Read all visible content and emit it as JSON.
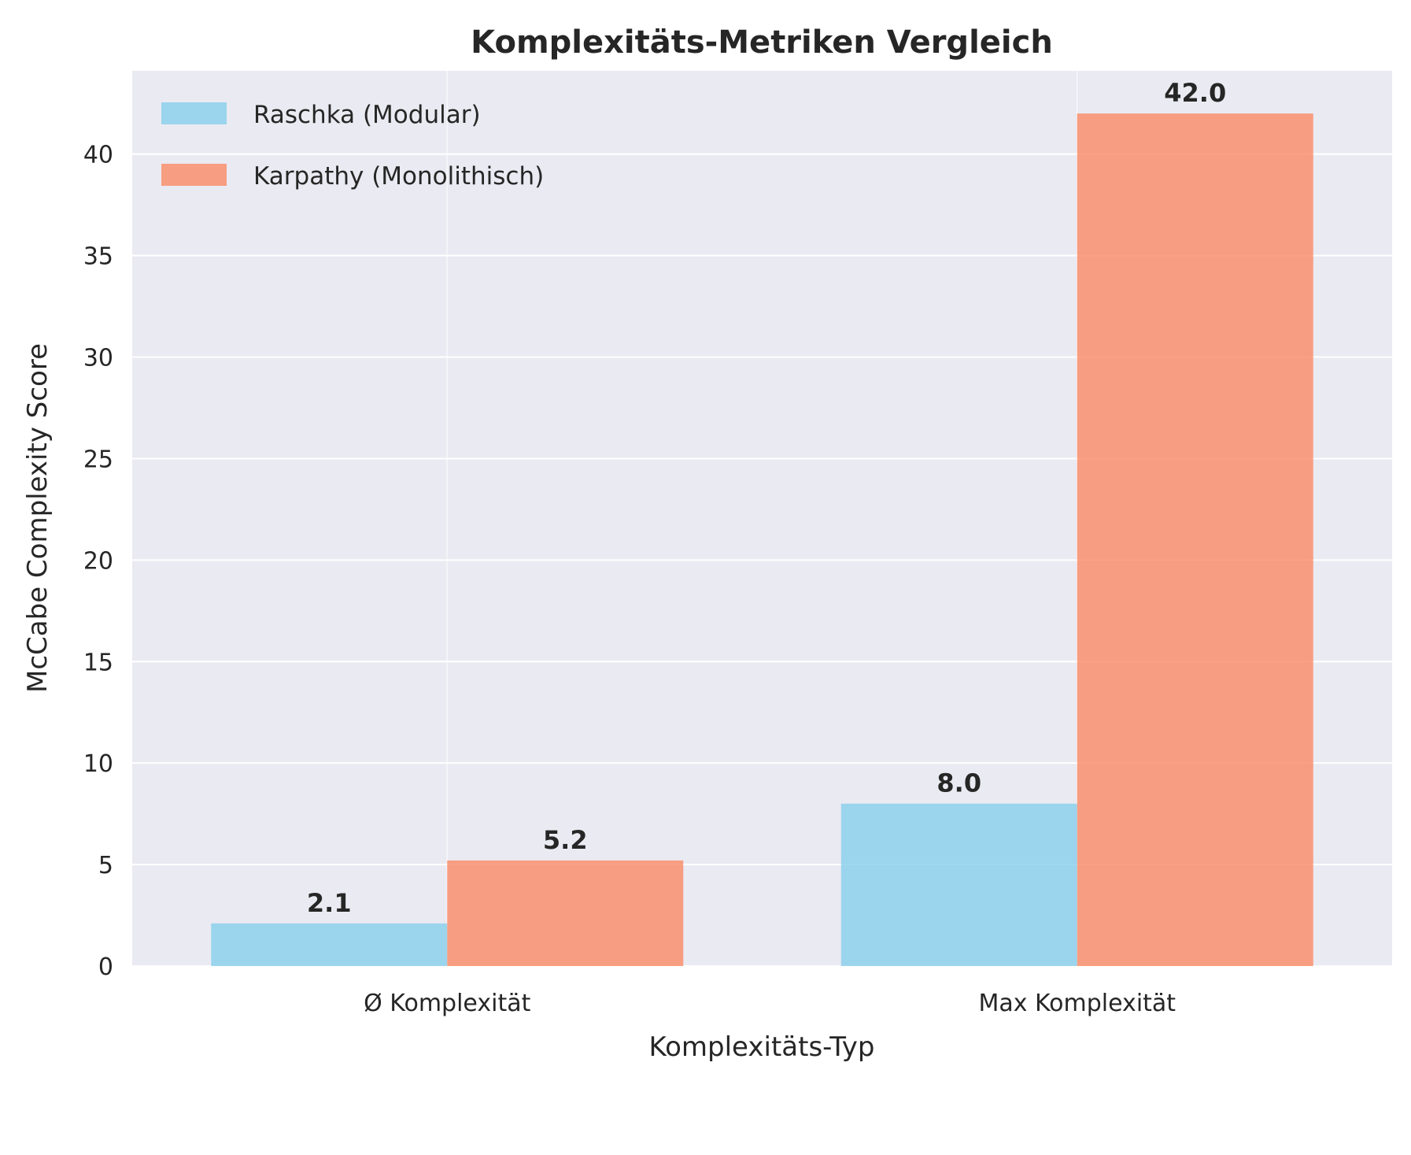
{
  "chart_data": {
    "type": "bar",
    "title": "Komplexitäts-Metriken Vergleich",
    "xlabel": "Komplexitäts-Typ",
    "ylabel": "McCabe Complexity Score",
    "categories": [
      "Ø Komplexität",
      "Max Komplexität"
    ],
    "series": [
      {
        "name": "Raschka (Modular)",
        "values": [
          2.1,
          8.0
        ],
        "color": "#87CEEB",
        "value_labels": [
          "2.1",
          "8.0"
        ]
      },
      {
        "name": "Karpathy (Monolithisch)",
        "values": [
          5.2,
          42.0
        ],
        "color": "#FA8A64",
        "value_labels": [
          "5.2",
          "42.0"
        ]
      }
    ],
    "ylim": [
      0,
      44.1
    ],
    "yticks": [
      0,
      5,
      10,
      15,
      20,
      25,
      30,
      35,
      40
    ],
    "ytick_labels": [
      "0",
      "5",
      "10",
      "15",
      "20",
      "25",
      "30",
      "35",
      "40"
    ],
    "grid": true,
    "legend_position": "top-left",
    "colors": {
      "plot_background": "#EAEAF2",
      "grid": "#FFFFFF",
      "text": "#262626"
    }
  }
}
